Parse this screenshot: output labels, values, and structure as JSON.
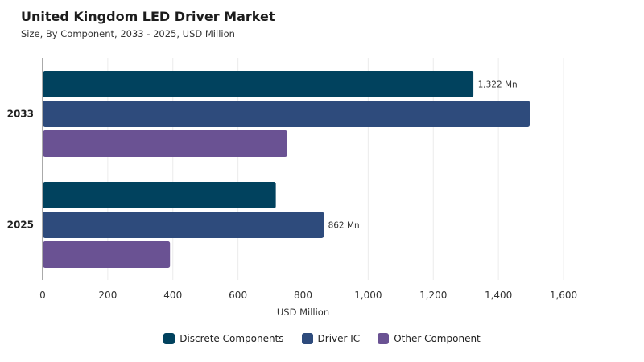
{
  "chart_data": {
    "type": "bar",
    "orientation": "horizontal",
    "title": "United Kingdom LED Driver Market",
    "subtitle": "Size, By Component, 2033 - 2025, USD Million",
    "xlabel": "USD Million",
    "ylabel": "",
    "xlim": [
      0,
      1600
    ],
    "xticks": [
      "0",
      "200",
      "400",
      "600",
      "800",
      "1,000",
      "1,200",
      "1,400",
      "1,600"
    ],
    "categories": [
      "2033",
      "2025"
    ],
    "grid": "vertical",
    "legend_position": "bottom-center",
    "series": [
      {
        "name": "Discrete Components",
        "color": "#01425E",
        "values": [
          1322,
          715
        ]
      },
      {
        "name": "Driver IC",
        "color": "#2E4B7C",
        "values": [
          1495,
          862
        ]
      },
      {
        "name": "Other Component",
        "color": "#6A5293",
        "values": [
          750,
          390
        ]
      }
    ],
    "data_labels": [
      {
        "series": 0,
        "category": 0,
        "text": "1,322 Mn"
      },
      {
        "series": 1,
        "category": 1,
        "text": "862 Mn"
      }
    ]
  }
}
